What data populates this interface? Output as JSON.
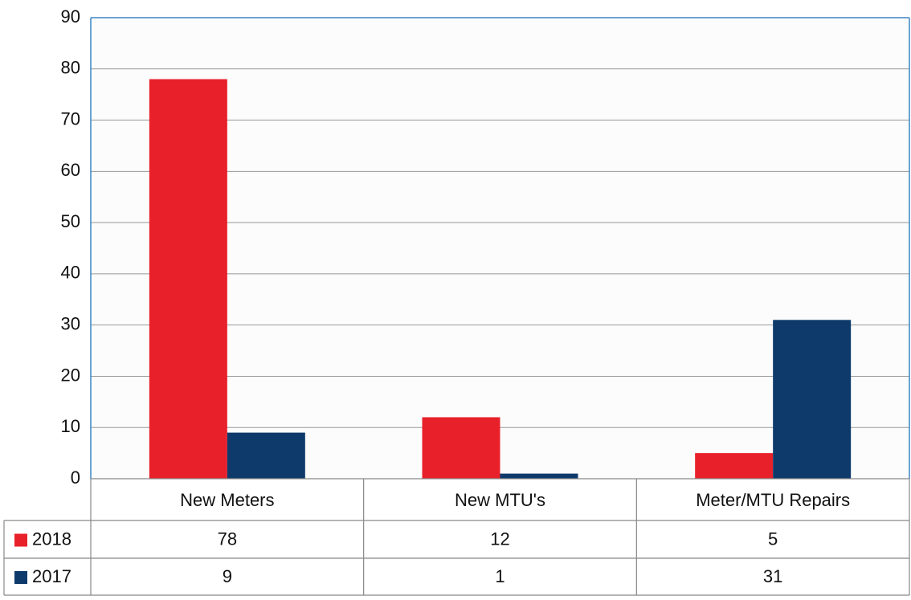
{
  "chart_data": {
    "type": "bar",
    "categories": [
      "New Meters",
      "New MTU's",
      "Meter/MTU Repairs"
    ],
    "series": [
      {
        "name": "2018",
        "color": "#e8202a",
        "values": [
          78,
          12,
          5
        ]
      },
      {
        "name": "2017",
        "color": "#0e3a6b",
        "values": [
          9,
          1,
          31
        ]
      }
    ],
    "ylim": [
      0,
      90
    ],
    "yticks": [
      0,
      10,
      20,
      30,
      40,
      50,
      60,
      70,
      80,
      90
    ],
    "grid": true
  }
}
